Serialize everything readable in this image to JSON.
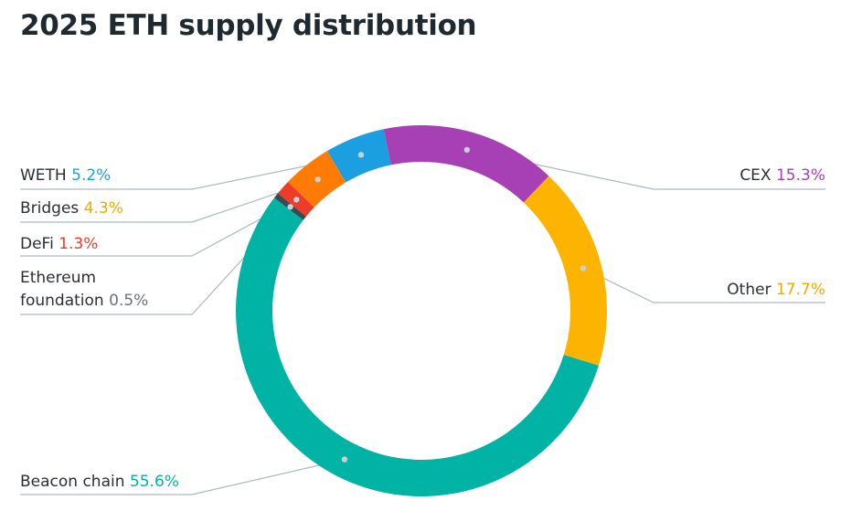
{
  "title": "2025 ETH supply distribution",
  "chart_data": {
    "type": "pie",
    "variant": "donut",
    "title": "2025 ETH supply distribution",
    "unit": "%",
    "slices": [
      {
        "name": "WETH",
        "value": 5.2,
        "value_label": "5.2%",
        "color": "#1b9fe0"
      },
      {
        "name": "CEX",
        "value": 15.3,
        "value_label": "15.3%",
        "color": "#a73fb5"
      },
      {
        "name": "Other",
        "value": 17.7,
        "value_label": "17.7%",
        "color": "#fdb400"
      },
      {
        "name": "Beacon chain",
        "value": 55.6,
        "value_label": "55.6%",
        "color": "#00b3a5"
      },
      {
        "name": "Ethereum foundation",
        "name_lines": [
          "Ethereum",
          "foundation"
        ],
        "value": 0.5,
        "value_label": "0.5%",
        "color": "#3a4a52"
      },
      {
        "name": "DeFi",
        "value": 1.3,
        "value_label": "1.3%",
        "color": "#ee3c2a"
      },
      {
        "name": "Bridges",
        "value": 4.3,
        "value_label": "4.3%",
        "color": "#fe7b05"
      }
    ],
    "value_label_colors": {
      "WETH": "#1b9fe0",
      "CEX": "#a73fb5",
      "Other": "#f2a900",
      "Beacon chain": "#00b3a5",
      "Ethereum foundation": "#6b7378",
      "DeFi": "#ee3c2a",
      "Bridges": "#f2a900"
    },
    "legend": "callout labels"
  }
}
